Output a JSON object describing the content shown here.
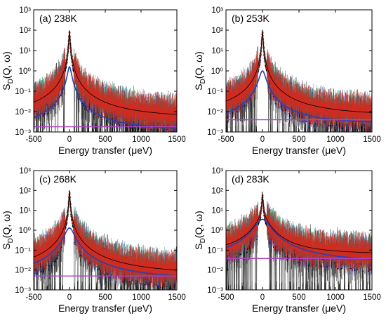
{
  "chart_data": [
    {
      "type": "scatter",
      "panel_label": "(a) 238K",
      "xlabel": "Energy transfer (μeV)",
      "ylabel_main": "S",
      "ylabel_sub": "D",
      "ylabel_rest": "(Q, ω)",
      "xlim": [
        -500,
        1500
      ],
      "ylim": [
        0.001,
        1000
      ],
      "yscale": "log",
      "x_ticks": [
        -500,
        0,
        500,
        1000,
        1500
      ],
      "x_tick_labels": [
        "-500",
        "0",
        "500",
        "1000",
        "1500"
      ],
      "y_tick_labels": [
        "10⁻³",
        "10⁻²",
        "10⁻¹",
        "10⁰",
        "10¹",
        "10²",
        "10³"
      ],
      "peak": 80,
      "narrow_width": 8,
      "broad_amp": 1.6,
      "broad_width": 25,
      "background": 0.0045,
      "baseline": 0.0018,
      "series_colors": {
        "data_black": "#000000",
        "data_green": "#1a9a6e",
        "data_red": "#d42a1f",
        "data_blue": "#2a3fb0",
        "fit_blue": "#2a3fb0",
        "baseline_magenta": "#b040c8"
      }
    },
    {
      "type": "scatter",
      "panel_label": "(b) 253K",
      "xlabel": "Energy transfer (μeV)",
      "ylabel_main": "S",
      "ylabel_sub": "D",
      "ylabel_rest": "(Q, ω)",
      "xlim": [
        -500,
        1500
      ],
      "ylim": [
        0.001,
        1000
      ],
      "yscale": "log",
      "x_ticks": [
        -500,
        0,
        500,
        1000,
        1500
      ],
      "x_tick_labels": [
        "-500",
        "0",
        "500",
        "1000",
        "1500"
      ],
      "y_tick_labels": [
        "10⁻³",
        "10⁻²",
        "10⁻¹",
        "10⁰",
        "10¹",
        "10²",
        "10³"
      ],
      "peak": 80,
      "narrow_width": 8,
      "broad_amp": 1.0,
      "broad_width": 40,
      "background": 0.006,
      "baseline": 0.004,
      "series_colors": {
        "data_black": "#000000",
        "data_green": "#1a9a6e",
        "data_red": "#d42a1f",
        "data_blue": "#2a3fb0",
        "fit_blue": "#2a3fb0",
        "baseline_magenta": "#b040c8"
      }
    },
    {
      "type": "scatter",
      "panel_label": "(c) 268K",
      "xlabel": "Energy transfer (μeV)",
      "ylabel_main": "S",
      "ylabel_sub": "D",
      "ylabel_rest": "(Q, ω)",
      "xlim": [
        -500,
        1500
      ],
      "ylim": [
        0.001,
        1000
      ],
      "yscale": "log",
      "x_ticks": [
        -500,
        0,
        500,
        1000,
        1500
      ],
      "x_tick_labels": [
        "-500",
        "0",
        "500",
        "1000",
        "1500"
      ],
      "y_tick_labels": [
        "10⁻³",
        "10⁻²",
        "10⁻¹",
        "10⁰",
        "10¹",
        "10²",
        "10³"
      ],
      "peak": 80,
      "narrow_width": 8,
      "broad_amp": 1.3,
      "broad_width": 60,
      "background": 0.0055,
      "baseline": 0.005,
      "series_colors": {
        "data_black": "#000000",
        "data_green": "#1a9a6e",
        "data_red": "#d42a1f",
        "data_blue": "#2a3fb0",
        "fit_blue": "#2a3fb0",
        "baseline_magenta": "#b040c8"
      }
    },
    {
      "type": "scatter",
      "panel_label": "(d) 283K",
      "xlabel": "Energy transfer (μeV)",
      "ylabel_main": "S",
      "ylabel_sub": "D",
      "ylabel_rest": "(Q, ω)",
      "xlim": [
        -500,
        1500
      ],
      "ylim": [
        0.001,
        1000
      ],
      "yscale": "log",
      "x_ticks": [
        -500,
        0,
        500,
        1000,
        1500
      ],
      "x_tick_labels": [
        "-500",
        "0",
        "500",
        "1000",
        "1500"
      ],
      "y_tick_labels": [
        "10⁻³",
        "10⁻²",
        "10⁻¹",
        "10⁰",
        "10¹",
        "10²",
        "10³"
      ],
      "peak": 55,
      "narrow_width": 8,
      "broad_amp": 3.5,
      "broad_width": 90,
      "background": 0.06,
      "baseline": 0.038,
      "series_colors": {
        "data_black": "#000000",
        "data_green": "#1a9a6e",
        "data_red": "#d42a1f",
        "data_blue": "#2a3fb0",
        "fit_blue": "#2a3fb0",
        "baseline_magenta": "#b040c8"
      }
    }
  ]
}
